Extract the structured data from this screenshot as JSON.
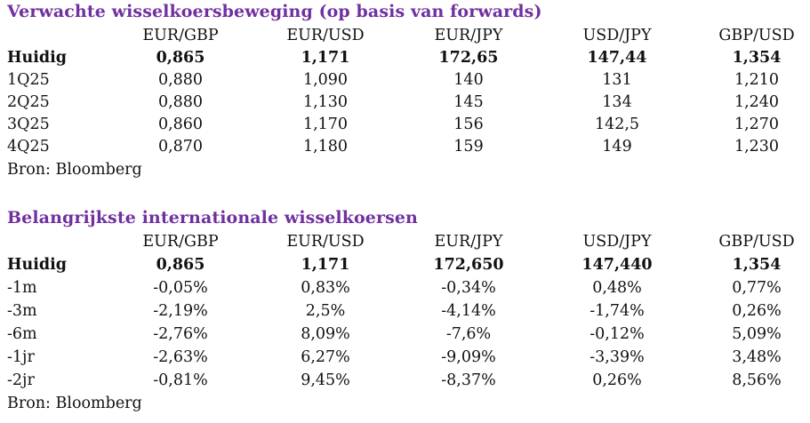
{
  "forwards": {
    "title": "Verwachte wisselkoersbeweging (op basis van forwards)",
    "columns": [
      "EUR/GBP",
      "EUR/USD",
      "EUR/JPY",
      "USD/JPY",
      "GBP/USD"
    ],
    "rows": [
      {
        "label": "Huidig",
        "values": [
          "0,865",
          "1,171",
          "172,65",
          "147,44",
          "1,354"
        ]
      },
      {
        "label": "1Q25",
        "values": [
          "0,880",
          "1,090",
          "140",
          "131",
          "1,210"
        ]
      },
      {
        "label": "2Q25",
        "values": [
          "0,880",
          "1,130",
          "145",
          "134",
          "1,240"
        ]
      },
      {
        "label": "3Q25",
        "values": [
          "0,860",
          "1,170",
          "156",
          "142,5",
          "1,270"
        ]
      },
      {
        "label": "4Q25",
        "values": [
          "0,870",
          "1,180",
          "159",
          "149",
          "1,230"
        ]
      }
    ],
    "source": "Bron: Bloomberg"
  },
  "rates": {
    "title": "Belangrijkste internationale wisselkoersen",
    "columns": [
      "EUR/GBP",
      "EUR/USD",
      "EUR/JPY",
      "USD/JPY",
      "GBP/USD"
    ],
    "rows": [
      {
        "label": "Huidig",
        "values": [
          "0,865",
          "1,171",
          "172,650",
          "147,440",
          "1,354"
        ]
      },
      {
        "label": "-1m",
        "values": [
          "-0,05%",
          "0,83%",
          "-0,34%",
          "0,48%",
          "0,77%"
        ]
      },
      {
        "label": "-3m",
        "values": [
          "-2,19%",
          "2,5%",
          "-4,14%",
          "-1,74%",
          "0,26%"
        ]
      },
      {
        "label": "-6m",
        "values": [
          "-2,76%",
          "8,09%",
          "-7,6%",
          "-0,12%",
          "5,09%"
        ]
      },
      {
        "label": "-1jr",
        "values": [
          "-2,63%",
          "6,27%",
          "-9,09%",
          "-3,39%",
          "3,48%"
        ]
      },
      {
        "label": "-2jr",
        "values": [
          "-0,81%",
          "9,45%",
          "-8,37%",
          "0,26%",
          "8,56%"
        ]
      }
    ],
    "source": "Bron: Bloomberg"
  }
}
